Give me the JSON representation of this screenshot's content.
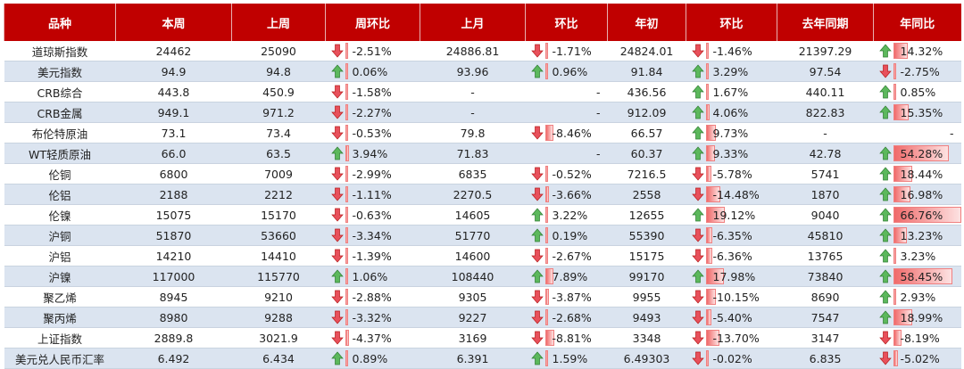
{
  "table": {
    "headers": [
      "品种",
      "本周",
      "上周",
      "周环比",
      "上月",
      "环比",
      "年初",
      "环比",
      "去年同期",
      "年同比"
    ],
    "rows": [
      [
        "道琼斯指数",
        "24462",
        "25090",
        "-2.51%",
        "24886.81",
        "-1.71%",
        "24824.01",
        "-1.46%",
        "21397.29",
        "14.32%"
      ],
      [
        "美元指数",
        "94.9",
        "94.8",
        "0.06%",
        "93.96",
        "0.96%",
        "91.84",
        "3.29%",
        "97.54",
        "-2.75%"
      ],
      [
        "CRB综合",
        "443.8",
        "450.9",
        "-1.58%",
        "-",
        "-",
        "436.56",
        "1.67%",
        "440.11",
        "0.85%"
      ],
      [
        "CRB金属",
        "949.1",
        "971.2",
        "-2.27%",
        "-",
        "-",
        "912.09",
        "4.06%",
        "822.83",
        "15.35%"
      ],
      [
        "布伦特原油",
        "73.1",
        "73.4",
        "-0.53%",
        "79.8",
        "-8.46%",
        "66.57",
        "9.73%",
        "-",
        "-"
      ],
      [
        "WT轻质原油",
        "66.0",
        "63.5",
        "3.94%",
        "71.83",
        "-",
        "60.37",
        "9.33%",
        "42.78",
        "54.28%"
      ],
      [
        "伦铜",
        "6800",
        "7009",
        "-2.99%",
        "6835",
        "-0.52%",
        "7216.5",
        "-5.78%",
        "5741",
        "18.44%"
      ],
      [
        "伦铝",
        "2188",
        "2212",
        "-1.11%",
        "2270.5",
        "-3.66%",
        "2558",
        "-14.48%",
        "1870",
        "16.98%"
      ],
      [
        "伦镍",
        "15075",
        "15170",
        "-0.63%",
        "14605",
        "3.22%",
        "12655",
        "19.12%",
        "9040",
        "66.76%"
      ],
      [
        "沪铜",
        "51870",
        "53660",
        "-3.34%",
        "51770",
        "0.19%",
        "55390",
        "-6.35%",
        "45810",
        "13.23%"
      ],
      [
        "沪铝",
        "14210",
        "14410",
        "-1.39%",
        "14600",
        "-2.67%",
        "15175",
        "-6.36%",
        "13765",
        "3.23%"
      ],
      [
        "沪镍",
        "117000",
        "115770",
        "1.06%",
        "108440",
        "7.89%",
        "99170",
        "17.98%",
        "73840",
        "58.45%"
      ],
      [
        "聚乙烯",
        "8945",
        "9210",
        "-2.88%",
        "9305",
        "-3.87%",
        "9955",
        "-10.15%",
        "8690",
        "2.93%"
      ],
      [
        "聚丙烯",
        "8980",
        "9288",
        "-3.32%",
        "9227",
        "-2.68%",
        "9493",
        "-5.40%",
        "7547",
        "18.99%"
      ],
      [
        "上证指数",
        "2889.8",
        "3021.9",
        "-4.37%",
        "3169",
        "-8.81%",
        "3348",
        "-13.70%",
        "3147",
        "-8.19%"
      ],
      [
        "美元兑人民币汇率",
        "6.492",
        "6.434",
        "0.89%",
        "6.391",
        "1.59%",
        "6.49303",
        "-0.02%",
        "6.835",
        "-5.02%"
      ]
    ]
  }
}
